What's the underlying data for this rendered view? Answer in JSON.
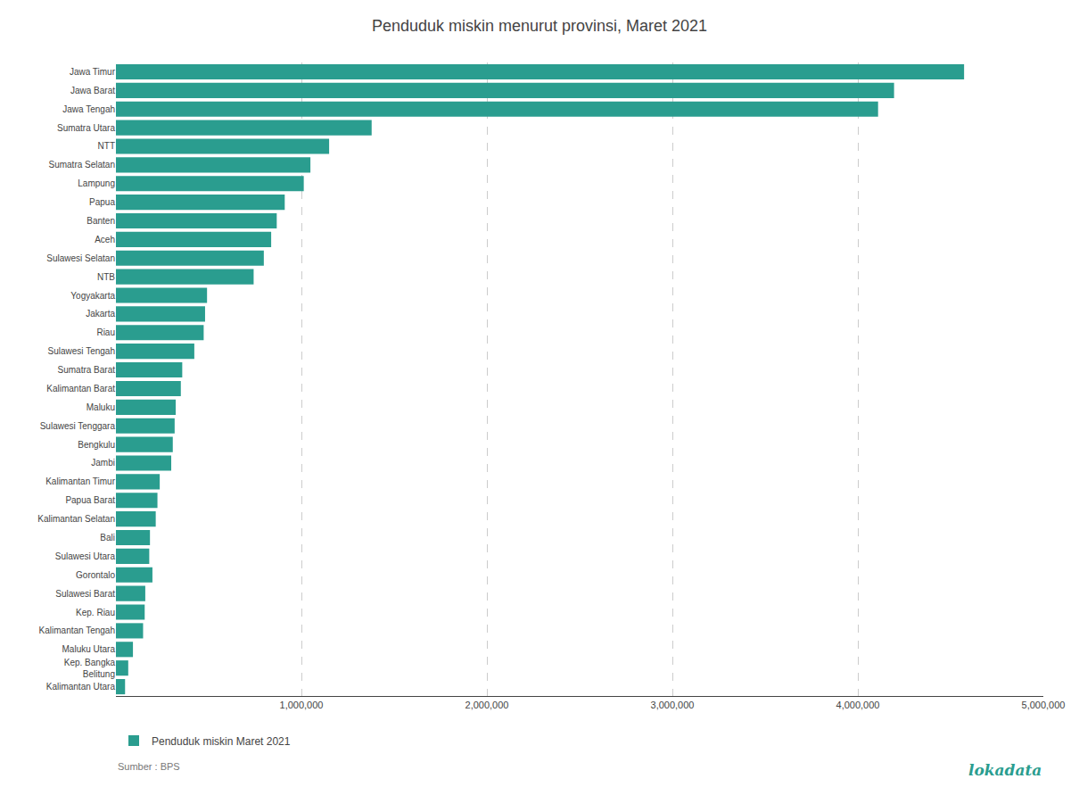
{
  "chart_data": {
    "type": "bar",
    "orientation": "horizontal",
    "title": "Penduduk miskin menurut provinsi, Maret 2021",
    "categories": [
      "Jawa Timur",
      "Jawa Barat",
      "Jawa Tengah",
      "Sumatra Utara",
      "NTT",
      "Sumatra Selatan",
      "Lampung",
      "Papua",
      "Banten",
      "Aceh",
      "Sulawesi Selatan",
      "NTB",
      "Yogyakarta",
      "Jakarta",
      "Riau",
      "Sulawesi Tengah",
      "Sumatra Barat",
      "Kalimantan Barat",
      "Maluku",
      "Sulawesi Tenggara",
      "Bengkulu",
      "Jambi",
      "Kalimantan Timur",
      "Papua Barat",
      "Kalimantan Selatan",
      "Bali",
      "Sulawesi Utara",
      "Gorontalo",
      "Sulawesi Barat",
      "Kep. Riau",
      "Kalimantan Tengah",
      "Maluku Utara",
      "Kep. Bangka\nBelitung",
      "Kalimantan Utara"
    ],
    "series": [
      {
        "name": "Penduduk miskin Maret 2021",
        "color": "#2a9d8f",
        "values": [
          4572730,
          4195230,
          4109030,
          1378650,
          1149480,
          1048510,
          1012690,
          910160,
          867000,
          836990,
          797340,
          742440,
          491190,
          480640,
          473120,
          422580,
          357550,
          349880,
          322290,
          316570,
          306560,
          298180,
          236220,
          223830,
          214620,
          183530,
          179690,
          196850,
          158280,
          155110,
          146510,
          91720,
          66360,
          49290
        ]
      }
    ],
    "xlim": [
      0,
      5000000
    ],
    "xticks": [
      {
        "value": 1000000,
        "label": "1,000,000"
      },
      {
        "value": 2000000,
        "label": "2,000,000"
      },
      {
        "value": 3000000,
        "label": "3,000,000"
      },
      {
        "value": 4000000,
        "label": "4,000,000"
      },
      {
        "value": 5000000,
        "label": "5,000,000"
      }
    ],
    "grid": true,
    "legend": "bottom",
    "annotations": [
      "Sumber : BPS",
      "lokadata"
    ]
  }
}
